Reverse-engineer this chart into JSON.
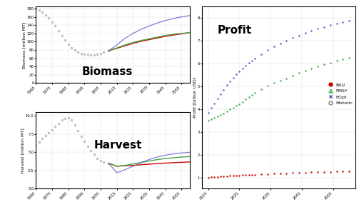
{
  "biomass": {
    "hist_years": [
      1965,
      1967,
      1969,
      1971,
      1973,
      1975,
      1977,
      1979,
      1981,
      1983,
      1985,
      1987,
      1989,
      1991,
      1993,
      1995,
      1997,
      1999,
      2001,
      2003,
      2005,
      2007,
      2010
    ],
    "hist_values": [
      180,
      176,
      171,
      165,
      157,
      148,
      138,
      126,
      115,
      104,
      94,
      86,
      80,
      75,
      72,
      70,
      69,
      68,
      68,
      69,
      71,
      74,
      78
    ],
    "future_years": [
      2010,
      2015,
      2020,
      2025,
      2030,
      2035,
      2040,
      2045,
      2050,
      2055,
      2060
    ],
    "bau_values": [
      78,
      84,
      90,
      96,
      101,
      105,
      109,
      113,
      116,
      119,
      122
    ],
    "fmsy_values": [
      78,
      85,
      92,
      98,
      103,
      107,
      111,
      115,
      118,
      120,
      122
    ],
    "eopt_values": [
      78,
      92,
      108,
      120,
      130,
      138,
      145,
      151,
      156,
      160,
      163
    ],
    "ylabel": "Biomass [million MT]",
    "xlim": [
      1965,
      2060
    ],
    "ylim": [
      0,
      185
    ],
    "yticks": [
      0,
      20,
      40,
      60,
      80,
      100,
      120,
      140,
      160,
      180
    ],
    "label": "Biomass"
  },
  "harvest": {
    "hist_years": [
      1965,
      1967,
      1969,
      1971,
      1973,
      1975,
      1977,
      1979,
      1981,
      1983,
      1985,
      1987,
      1989,
      1991,
      1993,
      1995,
      1997,
      1999,
      2001,
      2003,
      2005,
      2007,
      2010
    ],
    "hist_values": [
      6.0,
      6.4,
      6.9,
      7.3,
      7.7,
      8.1,
      8.6,
      9.0,
      9.4,
      9.6,
      9.7,
      9.4,
      8.8,
      8.0,
      7.2,
      6.5,
      5.8,
      5.2,
      4.7,
      4.2,
      3.9,
      3.7,
      3.5
    ],
    "future_years": [
      2010,
      2015,
      2020,
      2025,
      2030,
      2035,
      2040,
      2045,
      2050,
      2055,
      2060
    ],
    "bau_values": [
      3.5,
      3.1,
      3.15,
      3.2,
      3.3,
      3.38,
      3.45,
      3.52,
      3.58,
      3.63,
      3.68
    ],
    "fmsy_values": [
      3.5,
      3.1,
      3.2,
      3.4,
      3.6,
      3.8,
      4.0,
      4.15,
      4.25,
      4.35,
      4.42
    ],
    "eopt_values": [
      3.5,
      2.2,
      2.6,
      3.1,
      3.6,
      4.0,
      4.35,
      4.6,
      4.78,
      4.9,
      5.0
    ],
    "ylabel": "Harvest [million MT]",
    "xlim": [
      1965,
      2060
    ],
    "ylim": [
      0,
      10.5
    ],
    "yticks": [
      0.0,
      2.5,
      5.0,
      7.5,
      10.0
    ],
    "label": "Harvest"
  },
  "profit": {
    "future_years": [
      2015,
      2016,
      2017,
      2018,
      2019,
      2020,
      2021,
      2022,
      2023,
      2024,
      2025,
      2026,
      2027,
      2028,
      2029,
      2030,
      2032,
      2034,
      2036,
      2038,
      2040,
      2042,
      2044,
      2046,
      2048,
      2050,
      2052,
      2054,
      2056,
      2058,
      2060
    ],
    "bau_values": [
      1.0,
      1.01,
      1.02,
      1.03,
      1.04,
      1.05,
      1.06,
      1.07,
      1.07,
      1.08,
      1.09,
      1.1,
      1.1,
      1.11,
      1.12,
      1.12,
      1.13,
      1.14,
      1.16,
      1.17,
      1.18,
      1.19,
      1.2,
      1.21,
      1.22,
      1.23,
      1.24,
      1.25,
      1.26,
      1.27,
      1.28
    ],
    "fmsy_values": [
      3.5,
      3.55,
      3.62,
      3.68,
      3.75,
      3.82,
      3.9,
      3.98,
      4.06,
      4.14,
      4.22,
      4.32,
      4.42,
      4.52,
      4.62,
      4.72,
      4.88,
      5.02,
      5.14,
      5.25,
      5.35,
      5.47,
      5.58,
      5.68,
      5.78,
      5.88,
      5.96,
      6.04,
      6.12,
      6.18,
      6.25
    ],
    "eopt_values": [
      3.85,
      4.05,
      4.25,
      4.45,
      4.65,
      4.85,
      5.05,
      5.22,
      5.38,
      5.52,
      5.65,
      5.78,
      5.9,
      6.02,
      6.13,
      6.23,
      6.42,
      6.6,
      6.75,
      6.88,
      7.0,
      7.12,
      7.22,
      7.33,
      7.43,
      7.52,
      7.6,
      7.68,
      7.75,
      7.82,
      7.88
    ],
    "ylabel": "Profit [billion USD]",
    "xlim": [
      2013,
      2062
    ],
    "ylim": [
      0.5,
      8.5
    ],
    "yticks": [
      1,
      2,
      3,
      4,
      5,
      6,
      7,
      8
    ],
    "label": "Profit"
  },
  "colors": {
    "hist": "#b8b8b8",
    "bau": "#cc0000",
    "fmsy": "#44aa44",
    "eopt": "#5555cc"
  },
  "xticks_left": [
    1965,
    1975,
    1985,
    1995,
    2005,
    2015,
    2025,
    2035,
    2045,
    2055
  ],
  "xticks_right": [
    2015,
    2025,
    2035,
    2045,
    2055
  ]
}
